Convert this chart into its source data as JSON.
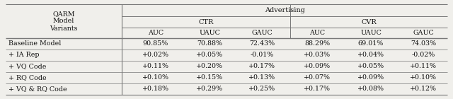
{
  "title": "Advertising",
  "col_header_label": "QARM\nModel\nVariants",
  "col_group_ctr": "CTR",
  "col_group_cvr": "CVR",
  "metrics": [
    "AUC",
    "UAUC",
    "GAUC",
    "AUC",
    "UAUC",
    "GAUC"
  ],
  "rows": [
    [
      "Baseline Model",
      "90.85%",
      "70.88%",
      "72.43%",
      "88.29%",
      "69.01%",
      "74.03%"
    ],
    [
      "+ IA Rep",
      "+0.02%",
      "+0.05%",
      "-0.01%",
      "+0.03%",
      "+0.04%",
      "-0.02%"
    ],
    [
      "+ VQ Code",
      "+0.11%",
      "+0.20%",
      "+0.17%",
      "+0.09%",
      "+0.05%",
      "+0.11%"
    ],
    [
      "+ RQ Code",
      "+0.10%",
      "+0.15%",
      "+0.13%",
      "+0.07%",
      "+0.09%",
      "+0.10%"
    ],
    [
      "+ VQ & RQ Code",
      "+0.18%",
      "+0.29%",
      "+0.25%",
      "+0.17%",
      "+0.08%",
      "+0.12%"
    ]
  ],
  "bg_color": "#f0efeb",
  "line_color": "#777777",
  "text_color": "#111111",
  "fontsize": 6.8,
  "header_fontsize": 7.0
}
